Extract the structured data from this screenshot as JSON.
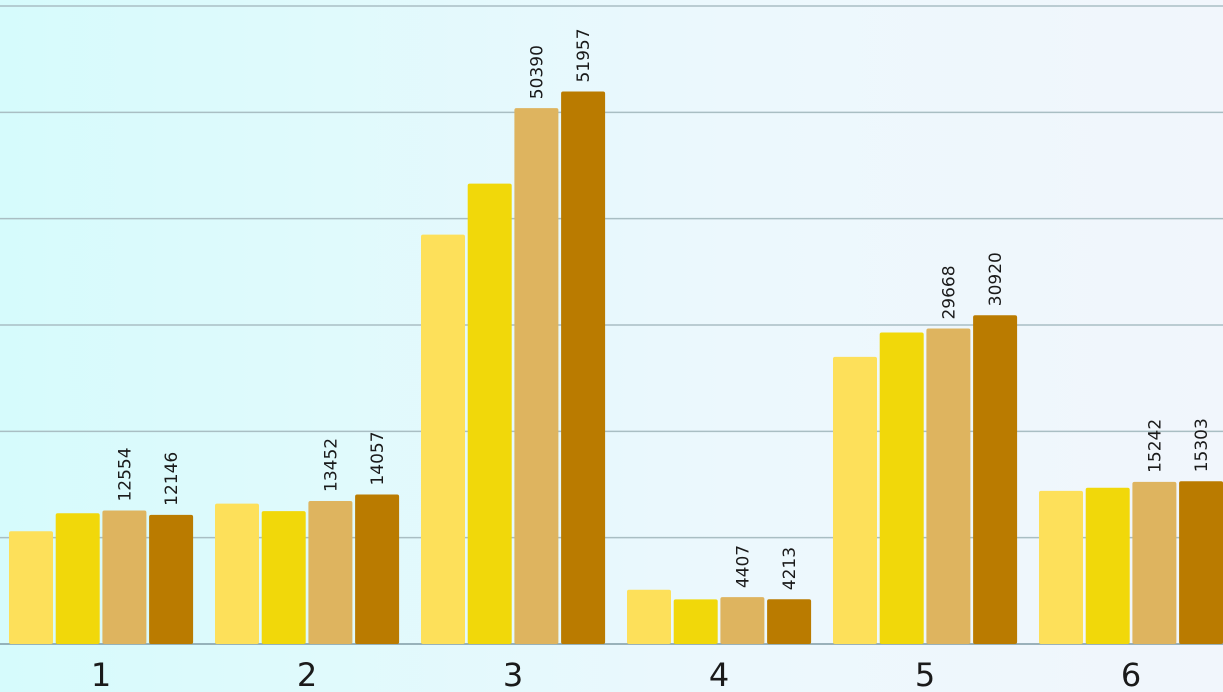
{
  "chart_data": {
    "type": "bar",
    "title": "",
    "xlabel": "",
    "ylabel": "",
    "categories": [
      "1",
      "2",
      "3",
      "4",
      "5",
      "6"
    ],
    "ylim": [
      0,
      60000
    ],
    "grid": true,
    "legend": "none",
    "series": [
      {
        "values": [
          10600,
          13200,
          38500,
          5100,
          27000,
          14400
        ],
        "color": "#fde05a"
      },
      {
        "values": [
          12300,
          12500,
          43300,
          4200,
          29300,
          14700
        ],
        "color": "#f1d80a"
      },
      {
        "values": [
          12554,
          13452,
          50390,
          4407,
          29668,
          15242
        ],
        "color": "#deb45f"
      },
      {
        "values": [
          12146,
          14057,
          51957,
          4213,
          30920,
          15303
        ],
        "color": "#ba7b00"
      }
    ],
    "data_labels": {
      "series_indices": [
        2,
        3
      ]
    }
  }
}
